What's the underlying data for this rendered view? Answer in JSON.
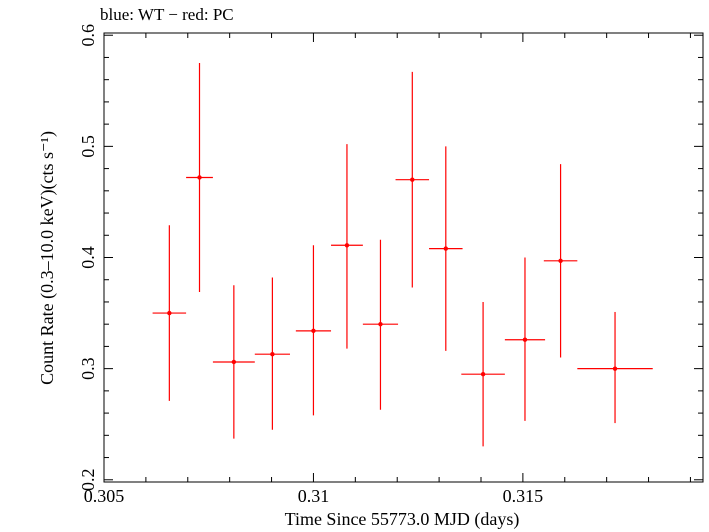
{
  "title": "blue: WT − red: PC",
  "chart_data": {
    "type": "scatter",
    "title": "blue: WT − red: PC",
    "xlabel": "Time Since 55773.0 MJD (days)",
    "ylabel": "Count Rate (0.3–10.0 keV)(cts s⁻¹)",
    "xlim": [
      0.305,
      0.3193
    ],
    "ylim": [
      0.198,
      0.602
    ],
    "x_ticks": [
      {
        "value": 0.305,
        "label": "0.305"
      },
      {
        "value": 0.31,
        "label": "0.31"
      },
      {
        "value": 0.315,
        "label": "0.315"
      }
    ],
    "y_ticks": [
      {
        "value": 0.2,
        "label": "0.2"
      },
      {
        "value": 0.3,
        "label": "0.3"
      },
      {
        "value": 0.4,
        "label": "0.4"
      },
      {
        "value": 0.5,
        "label": "0.5"
      },
      {
        "value": 0.6,
        "label": "0.6"
      }
    ],
    "grid": false,
    "series": [
      {
        "name": "PC",
        "color": "#ff0000",
        "points": [
          {
            "x": 0.30656,
            "xerr": 0.0004,
            "y": 0.35,
            "ylo": 0.271,
            "yhi": 0.429
          },
          {
            "x": 0.30728,
            "xerr": 0.00032,
            "y": 0.472,
            "ylo": 0.369,
            "yhi": 0.575
          },
          {
            "x": 0.3081,
            "xerr": 0.0005,
            "y": 0.306,
            "ylo": 0.237,
            "yhi": 0.375
          },
          {
            "x": 0.30902,
            "xerr": 0.00042,
            "y": 0.313,
            "ylo": 0.245,
            "yhi": 0.382
          },
          {
            "x": 0.31,
            "xerr": 0.00042,
            "y": 0.334,
            "ylo": 0.258,
            "yhi": 0.411
          },
          {
            "x": 0.3108,
            "xerr": 0.00038,
            "y": 0.411,
            "ylo": 0.318,
            "yhi": 0.502
          },
          {
            "x": 0.3116,
            "xerr": 0.00042,
            "y": 0.34,
            "ylo": 0.263,
            "yhi": 0.416
          },
          {
            "x": 0.31236,
            "xerr": 0.0004,
            "y": 0.47,
            "ylo": 0.373,
            "yhi": 0.567
          },
          {
            "x": 0.31316,
            "xerr": 0.0004,
            "y": 0.408,
            "ylo": 0.316,
            "yhi": 0.5
          },
          {
            "x": 0.31405,
            "xerr": 0.00052,
            "y": 0.295,
            "ylo": 0.23,
            "yhi": 0.36
          },
          {
            "x": 0.31505,
            "xerr": 0.00048,
            "y": 0.326,
            "ylo": 0.253,
            "yhi": 0.4
          },
          {
            "x": 0.3159,
            "xerr": 0.0004,
            "y": 0.397,
            "ylo": 0.31,
            "yhi": 0.484
          },
          {
            "x": 0.3172,
            "xerr": 0.0009,
            "y": 0.3,
            "ylo": 0.251,
            "yhi": 0.351
          }
        ]
      }
    ]
  }
}
